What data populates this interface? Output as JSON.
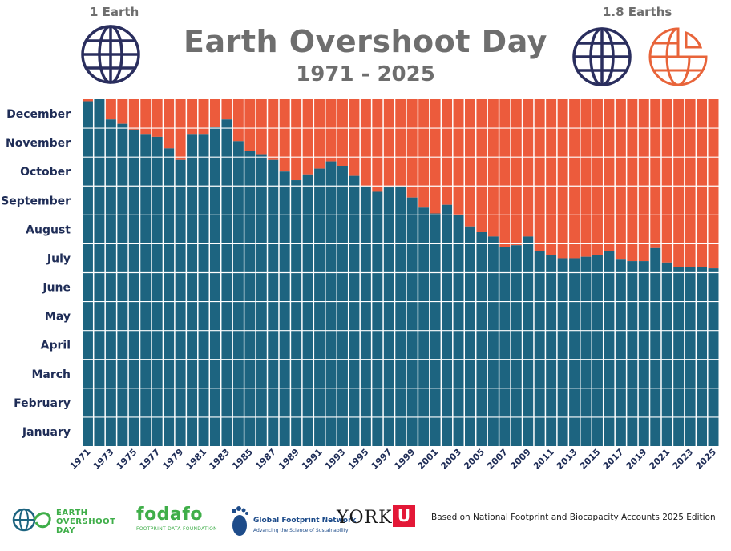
{
  "header": {
    "title": "Earth Overshoot Day",
    "subtitle": "1971 - 2025",
    "left_label": "1 Earth",
    "right_label": "1.8 Earths"
  },
  "colors": {
    "within_budget": "#1d6480",
    "overshoot": "#ec5b3c",
    "title": "#6e6e6e",
    "labels": "#1f2d57",
    "globe_dark": "#2a2e5e",
    "globe_orange": "#e8643a"
  },
  "footer": {
    "eod_line1": "EARTH",
    "eod_line2": "OVERSHOOT",
    "eod_line3": "DAY",
    "fodafo": "fodafo",
    "fodafo_sub": "FOOTPRINT DATA FOUNDATION",
    "gfn_name": "Global Footprint Network",
    "gfn_sub": "Advancing the Science of Sustainability",
    "york": "YORK",
    "york_u": "U",
    "source": "Based on National Footprint and Biocapacity Accounts 2025 Edition"
  },
  "chart_data": {
    "type": "bar",
    "title": "Earth Overshoot Day",
    "subtitle": "1971 - 2025",
    "xlabel": "",
    "ylabel": "",
    "y_unit": "month of year (0 = Jan 1, 12 = Dec 31)",
    "ylim": [
      0,
      12
    ],
    "month_labels": [
      "January",
      "February",
      "March",
      "April",
      "May",
      "June",
      "July",
      "August",
      "September",
      "October",
      "November",
      "December"
    ],
    "year_tick_labels": [
      "1971",
      "1973",
      "1975",
      "1977",
      "1979",
      "1981",
      "1983",
      "1985",
      "1987",
      "1989",
      "1991",
      "1993",
      "1995",
      "1997",
      "1999",
      "2001",
      "2003",
      "2005",
      "2007",
      "2009",
      "2011",
      "2013",
      "2015",
      "2017",
      "2019",
      "2021",
      "2023",
      "2025"
    ],
    "series": [
      {
        "name": "1 Earth",
        "color": "#1d6480"
      },
      {
        "name": "1.8 Earths",
        "color": "#ec5b3c"
      }
    ],
    "categories": [
      "1971",
      "1972",
      "1973",
      "1974",
      "1975",
      "1976",
      "1977",
      "1978",
      "1979",
      "1980",
      "1981",
      "1982",
      "1983",
      "1984",
      "1985",
      "1986",
      "1987",
      "1988",
      "1989",
      "1990",
      "1991",
      "1992",
      "1993",
      "1994",
      "1995",
      "1996",
      "1997",
      "1998",
      "1999",
      "2000",
      "2001",
      "2002",
      "2003",
      "2004",
      "2005",
      "2006",
      "2007",
      "2008",
      "2009",
      "2010",
      "2011",
      "2012",
      "2013",
      "2014",
      "2015",
      "2016",
      "2017",
      "2018",
      "2019",
      "2020",
      "2021",
      "2022",
      "2023",
      "2024",
      "2025"
    ],
    "values": [
      11.93,
      12.0,
      11.3,
      11.15,
      10.95,
      10.8,
      10.7,
      10.3,
      9.9,
      10.8,
      10.8,
      11.05,
      11.3,
      10.55,
      10.2,
      10.1,
      9.9,
      9.5,
      9.2,
      9.4,
      9.6,
      9.85,
      9.7,
      9.35,
      9.0,
      8.8,
      8.95,
      9.0,
      8.6,
      8.25,
      8.05,
      8.35,
      8.0,
      7.6,
      7.4,
      7.25,
      6.9,
      6.95,
      7.25,
      6.75,
      6.6,
      6.5,
      6.5,
      6.55,
      6.6,
      6.75,
      6.45,
      6.4,
      6.4,
      6.85,
      6.35,
      6.2,
      6.2,
      6.2,
      6.15
    ],
    "grid": true,
    "legend": "none"
  }
}
